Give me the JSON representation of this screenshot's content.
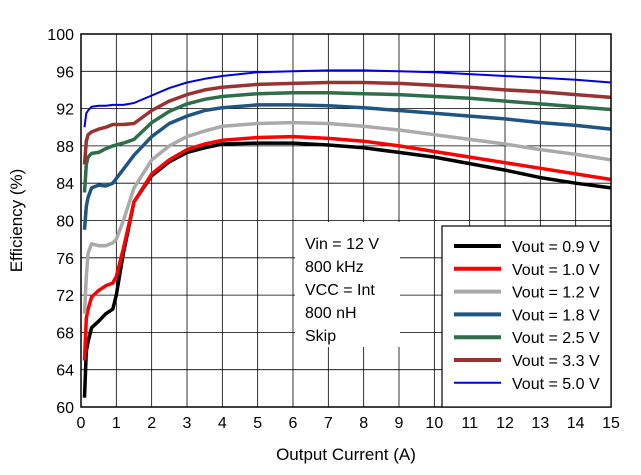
{
  "chart_data": {
    "type": "line",
    "title": "",
    "xlabel": "Output Current (A)",
    "ylabel": "Efficiency (%)",
    "xlim": [
      0,
      15
    ],
    "ylim": [
      60,
      100
    ],
    "xticks": [
      "0",
      "1",
      "2",
      "3",
      "4",
      "5",
      "6",
      "7",
      "8",
      "9",
      "10",
      "11",
      "12",
      "13",
      "14",
      "15"
    ],
    "yticks": [
      "60",
      "64",
      "68",
      "72",
      "76",
      "80",
      "84",
      "88",
      "92",
      "96",
      "100"
    ],
    "grid": true,
    "legend_position": "bottom-right",
    "annotation_lines": [
      "Vin = 12 V",
      "800 kHz",
      "VCC = Int",
      "800 nH",
      "Skip"
    ],
    "series": [
      {
        "name": "Vout = 0.9 V",
        "color": "#000000",
        "x": [
          0.1,
          0.15,
          0.2,
          0.3,
          0.5,
          0.7,
          0.9,
          1.0,
          1.2,
          1.5,
          2,
          2.5,
          3,
          3.5,
          4,
          5,
          6,
          7,
          8,
          9,
          10,
          11,
          12,
          13,
          14,
          15
        ],
        "y": [
          61,
          66,
          67,
          68.5,
          69.2,
          70,
          70.5,
          72,
          76.5,
          82,
          84.8,
          86.3,
          87.3,
          87.8,
          88.2,
          88.3,
          88.3,
          88.1,
          87.8,
          87.3,
          86.8,
          86.1,
          85.4,
          84.6,
          84,
          83.5
        ]
      },
      {
        "name": "Vout = 1.0 V",
        "color": "#ff0000",
        "x": [
          0.1,
          0.15,
          0.2,
          0.3,
          0.5,
          0.7,
          0.9,
          1.0,
          1.2,
          1.5,
          2,
          2.5,
          3,
          3.5,
          4,
          5,
          6,
          7,
          8,
          9,
          10,
          11,
          12,
          13,
          14,
          15
        ],
        "y": [
          65,
          69.5,
          70.5,
          71.8,
          72.5,
          73,
          73.3,
          74,
          77,
          82,
          85,
          86.5,
          87.6,
          88.2,
          88.6,
          88.9,
          89,
          88.8,
          88.5,
          88,
          87.4,
          86.8,
          86.2,
          85.6,
          85,
          84.4
        ]
      },
      {
        "name": "Vout = 1.2 V",
        "color": "#aaaaaa",
        "x": [
          0.1,
          0.15,
          0.2,
          0.3,
          0.5,
          0.7,
          0.9,
          1.0,
          1.2,
          1.5,
          2,
          2.5,
          3,
          3.5,
          4,
          5,
          6,
          7,
          8,
          9,
          10,
          11,
          12,
          13,
          14,
          15
        ],
        "y": [
          70,
          74,
          76.5,
          77.5,
          77.3,
          77.3,
          77.6,
          78,
          80,
          83.5,
          86.5,
          88,
          89,
          89.6,
          90.1,
          90.4,
          90.5,
          90.4,
          90.1,
          89.7,
          89.2,
          88.7,
          88.2,
          87.6,
          87.1,
          86.5
        ]
      },
      {
        "name": "Vout = 1.8 V",
        "color": "#1f5580",
        "x": [
          0.1,
          0.15,
          0.2,
          0.3,
          0.5,
          0.7,
          0.9,
          1.0,
          1.2,
          1.5,
          2,
          2.5,
          3,
          3.5,
          4,
          5,
          6,
          7,
          8,
          9,
          10,
          11,
          12,
          13,
          14,
          15
        ],
        "y": [
          79,
          81.5,
          82.5,
          83.5,
          83.8,
          83.7,
          84,
          84.5,
          85.5,
          87,
          89,
          90.4,
          91.2,
          91.8,
          92.1,
          92.4,
          92.4,
          92.3,
          92.1,
          91.8,
          91.5,
          91.2,
          90.9,
          90.5,
          90.2,
          89.8
        ]
      },
      {
        "name": "Vout = 2.5 V",
        "color": "#2e6e4a",
        "x": [
          0.1,
          0.15,
          0.2,
          0.3,
          0.5,
          0.7,
          0.9,
          1.0,
          1.2,
          1.5,
          2,
          2.5,
          3,
          3.5,
          4,
          5,
          6,
          7,
          8,
          9,
          10,
          11,
          12,
          13,
          14,
          15
        ],
        "y": [
          83,
          86,
          86.8,
          87.2,
          87.3,
          87.7,
          88,
          88.1,
          88.3,
          88.7,
          90.5,
          91.7,
          92.5,
          93,
          93.3,
          93.6,
          93.7,
          93.7,
          93.6,
          93.5,
          93.3,
          93.1,
          92.8,
          92.5,
          92.2,
          91.9
        ]
      },
      {
        "name": "Vout = 3.3 V",
        "color": "#993333",
        "x": [
          0.1,
          0.15,
          0.2,
          0.3,
          0.5,
          0.7,
          0.9,
          1.0,
          1.2,
          1.5,
          2,
          2.5,
          3,
          3.5,
          4,
          5,
          6,
          7,
          8,
          9,
          10,
          11,
          12,
          13,
          14,
          15
        ],
        "y": [
          86,
          88.5,
          89.2,
          89.5,
          89.8,
          90,
          90.3,
          90.3,
          90.3,
          90.4,
          91.8,
          92.8,
          93.5,
          94,
          94.3,
          94.6,
          94.7,
          94.8,
          94.8,
          94.7,
          94.5,
          94.3,
          94,
          93.8,
          93.5,
          93.2
        ]
      },
      {
        "name": "Vout = 5.0 V",
        "color": "#0000dd",
        "x": [
          0.1,
          0.15,
          0.2,
          0.3,
          0.5,
          0.7,
          0.9,
          1.0,
          1.2,
          1.5,
          2,
          2.5,
          3,
          3.5,
          4,
          5,
          6,
          7,
          8,
          9,
          10,
          11,
          12,
          13,
          14,
          15
        ],
        "y": [
          90,
          91.5,
          91.8,
          92.2,
          92.3,
          92.3,
          92.4,
          92.4,
          92.4,
          92.6,
          93.4,
          94.2,
          94.8,
          95.2,
          95.5,
          95.9,
          96,
          96.1,
          96.1,
          96,
          95.9,
          95.7,
          95.5,
          95.3,
          95.1,
          94.8
        ]
      }
    ]
  }
}
